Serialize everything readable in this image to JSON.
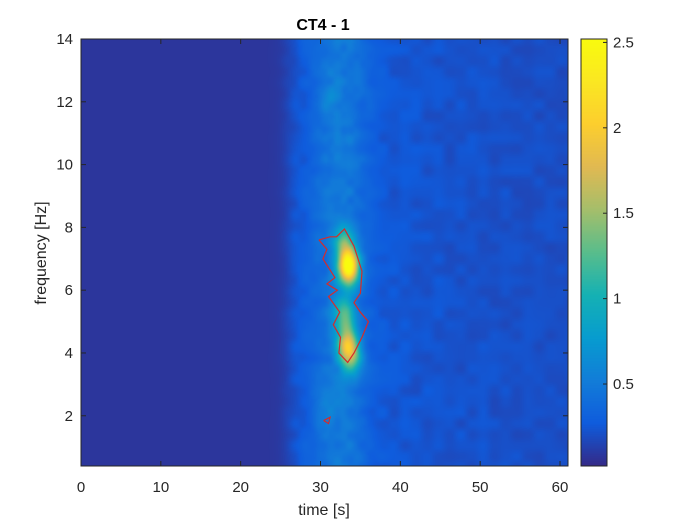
{
  "chart_data": {
    "type": "heatmap",
    "title": "CT4 - 1",
    "xlabel": "time [s]",
    "ylabel": "frequency [Hz]",
    "xlim": [
      0,
      61
    ],
    "ylim": [
      0.4,
      14
    ],
    "x_ticks": [
      0,
      10,
      20,
      30,
      40,
      50,
      60
    ],
    "y_ticks": [
      2,
      4,
      6,
      8,
      10,
      12,
      14
    ],
    "colorbar": {
      "range": [
        0.02,
        2.52
      ],
      "ticks": [
        0.5,
        1,
        1.5,
        2,
        2.5
      ],
      "tick_labels": [
        "0.5",
        "1",
        "1.5",
        "2",
        "2.5"
      ],
      "colormap": "parula"
    },
    "background_level": 0.08,
    "activity_onset_s": 26,
    "hotspots": [
      {
        "t": 33.5,
        "f": 6.75,
        "value": 2.5
      },
      {
        "t": 33.4,
        "f": 4.25,
        "value": 1.6
      },
      {
        "t": 33.0,
        "f": 5.2,
        "value": 1.1
      },
      {
        "t": 33.0,
        "f": 7.5,
        "value": 1.0
      },
      {
        "t": 34.0,
        "f": 3.8,
        "value": 0.9
      },
      {
        "t": 31.0,
        "f": 12.0,
        "value": 0.45
      },
      {
        "t": 30.5,
        "f": 2.0,
        "value": 0.4
      }
    ],
    "contour": {
      "color": "#d62b2b",
      "outlines": [
        [
          [
            29.8,
            7.6
          ],
          [
            31.2,
            7.7
          ],
          [
            32.0,
            7.7
          ],
          [
            33.0,
            7.95
          ],
          [
            34.2,
            7.4
          ],
          [
            35.2,
            6.6
          ],
          [
            35.0,
            5.9
          ],
          [
            34.2,
            5.6
          ],
          [
            35.0,
            5.3
          ],
          [
            36.0,
            5.0
          ],
          [
            35.2,
            4.5
          ],
          [
            34.2,
            4.0
          ],
          [
            33.4,
            3.7
          ],
          [
            32.3,
            4.0
          ],
          [
            32.5,
            4.5
          ],
          [
            31.6,
            4.9
          ],
          [
            32.4,
            5.3
          ],
          [
            31.0,
            5.8
          ],
          [
            32.1,
            6.0
          ],
          [
            30.8,
            6.2
          ],
          [
            31.8,
            6.4
          ],
          [
            30.3,
            7.0
          ],
          [
            30.8,
            7.3
          ],
          [
            29.8,
            7.6
          ]
        ],
        [
          [
            30.4,
            1.85
          ],
          [
            31.2,
            1.95
          ],
          [
            31.0,
            1.75
          ],
          [
            30.4,
            1.85
          ]
        ]
      ]
    }
  }
}
